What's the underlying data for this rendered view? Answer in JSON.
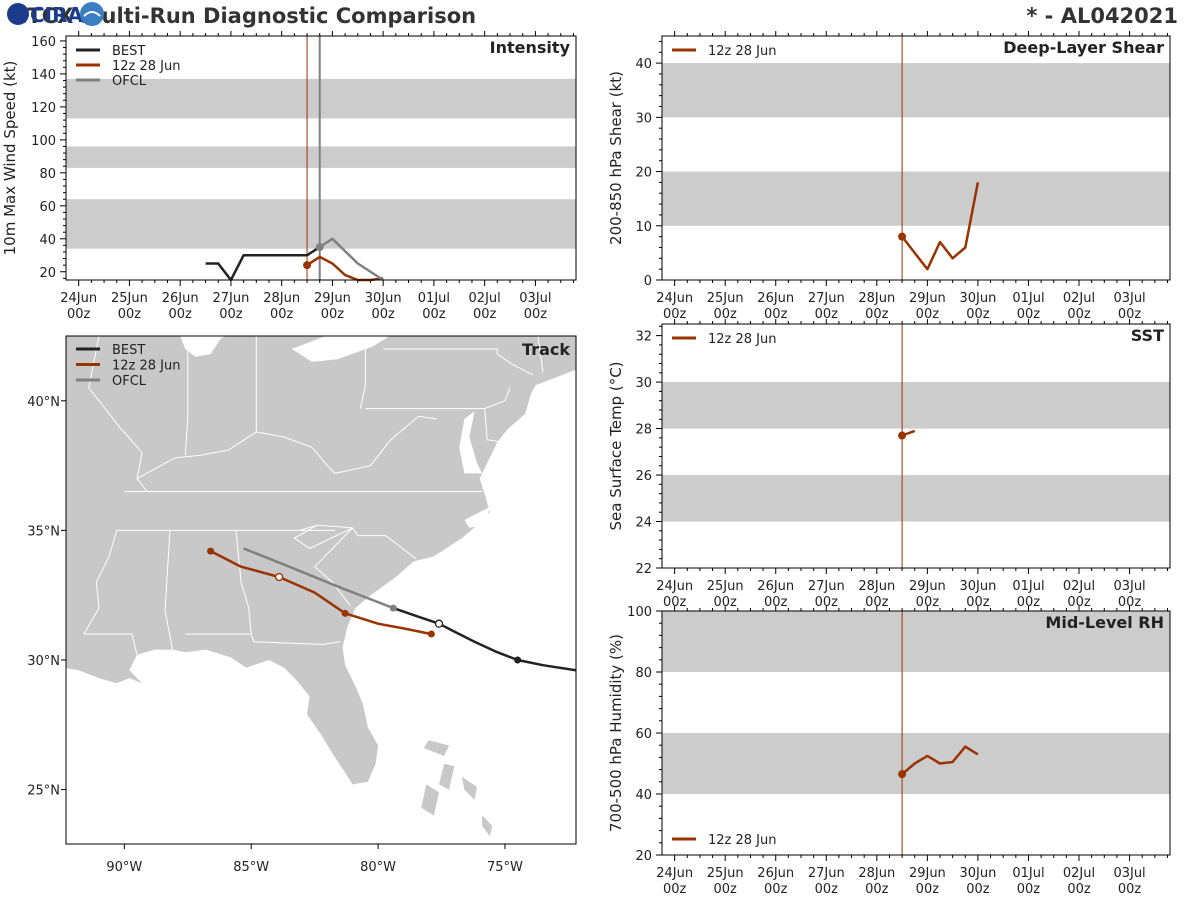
{
  "page": {
    "title_left": "CTCX Multi-Run Diagnostic Comparison",
    "title_right": "* - AL042021",
    "logo_text": "CIRA"
  },
  "colors": {
    "best": "#222222",
    "run": "#993300",
    "ofcl": "#808080",
    "band": "#cccccc",
    "land": "#c8c8c8",
    "ocean": "#ffffff",
    "border": "#ffffff"
  },
  "time_axis": {
    "ticks": [
      "24Jun 00z",
      "25Jun 00z",
      "26Jun 00z",
      "27Jun 00z",
      "28Jun 00z",
      "29Jun 00z",
      "30Jun 00z",
      "01Jul 00z",
      "02Jul 00z",
      "03Jul 00z"
    ],
    "tmin": -0.25,
    "tmax": 9.8,
    "run_time": 4.5,
    "ofcl_time": 4.75
  },
  "chart_data": [
    {
      "id": "intensity",
      "type": "line",
      "title": "Intensity",
      "ylabel": "10m Max Wind Speed (kt)",
      "ylim": [
        15,
        163
      ],
      "yticks": [
        20,
        40,
        60,
        80,
        100,
        120,
        140,
        160
      ],
      "bands": [
        [
          34,
          64
        ],
        [
          83,
          96
        ],
        [
          113,
          137
        ]
      ],
      "legend": [
        "BEST",
        "12z 28 Jun",
        "OFCL"
      ],
      "series": [
        {
          "name": "BEST",
          "color_key": "best",
          "points": [
            [
              2.5,
              25
            ],
            [
              2.75,
              25
            ],
            [
              3.0,
              15
            ],
            [
              3.25,
              30
            ],
            [
              3.5,
              30
            ],
            [
              4.0,
              30
            ],
            [
              4.5,
              30
            ],
            [
              4.75,
              35
            ]
          ]
        },
        {
          "name": "12z 28 Jun",
          "color_key": "run",
          "points": [
            [
              4.5,
              24
            ],
            [
              4.75,
              29
            ],
            [
              5.0,
              25
            ],
            [
              5.25,
              18
            ],
            [
              5.5,
              14
            ],
            [
              5.75,
              14
            ],
            [
              6.0,
              16
            ]
          ],
          "marker_first": true
        },
        {
          "name": "OFCL",
          "color_key": "ofcl",
          "points": [
            [
              4.75,
              35
            ],
            [
              5.0,
              40
            ],
            [
              5.5,
              25
            ],
            [
              6.0,
              15
            ]
          ],
          "marker_first": true
        }
      ]
    },
    {
      "id": "shear",
      "type": "line",
      "title": "Deep-Layer Shear",
      "ylabel": "200-850 hPa Shear (kt)",
      "ylim": [
        0,
        45
      ],
      "yticks": [
        0,
        10,
        20,
        30,
        40
      ],
      "bands": [
        [
          10,
          20
        ],
        [
          30,
          40
        ]
      ],
      "legend": [
        "12z 28 Jun"
      ],
      "series": [
        {
          "name": "12z 28 Jun",
          "color_key": "run",
          "points": [
            [
              4.5,
              8
            ],
            [
              4.75,
              5
            ],
            [
              5.0,
              2
            ],
            [
              5.25,
              7
            ],
            [
              5.5,
              4
            ],
            [
              5.75,
              6
            ],
            [
              6.0,
              18
            ]
          ],
          "marker_first": true
        }
      ]
    },
    {
      "id": "sst",
      "type": "line",
      "title": "SST",
      "ylabel": "Sea Surface Temp (°C)",
      "ylim": [
        22,
        32.5
      ],
      "yticks": [
        22,
        24,
        26,
        28,
        30,
        32
      ],
      "bands": [
        [
          24,
          26
        ],
        [
          28,
          30
        ]
      ],
      "legend": [
        "12z 28 Jun"
      ],
      "series": [
        {
          "name": "12z 28 Jun",
          "color_key": "run",
          "points": [
            [
              4.5,
              27.7
            ],
            [
              4.75,
              27.9
            ]
          ],
          "marker_first": true
        }
      ]
    },
    {
      "id": "rh",
      "type": "line",
      "title": "Mid-Level RH",
      "ylabel": "700-500 hPa Humidity (%)",
      "ylim": [
        20,
        100
      ],
      "yticks": [
        20,
        40,
        60,
        80,
        100
      ],
      "bands": [
        [
          40,
          60
        ],
        [
          80,
          100
        ]
      ],
      "legend": [
        "12z 28 Jun"
      ],
      "series": [
        {
          "name": "12z 28 Jun",
          "color_key": "run",
          "points": [
            [
              4.5,
              46.5
            ],
            [
              4.75,
              50
            ],
            [
              5.0,
              52.5
            ],
            [
              5.25,
              50
            ],
            [
              5.5,
              50.5
            ],
            [
              5.75,
              55.5
            ],
            [
              6.0,
              53
            ]
          ],
          "marker_first": true
        }
      ]
    },
    {
      "id": "track",
      "type": "scatter",
      "title": "Track",
      "lon_range": [
        -92.3,
        -72.2
      ],
      "lat_range": [
        22.9,
        42.5
      ],
      "lon_ticks": [
        -90,
        -85,
        -80,
        -75
      ],
      "lon_labels": [
        "90°W",
        "85°W",
        "80°W",
        "75°W"
      ],
      "lat_ticks": [
        25,
        30,
        35,
        40
      ],
      "lat_labels": [
        "25°N",
        "30°N",
        "35°N",
        "40°N"
      ],
      "legend": [
        "BEST",
        "12z 28 Jun",
        "OFCL"
      ],
      "series": [
        {
          "name": "BEST",
          "color_key": "best",
          "points": [
            [
              -72.2,
              29.6
            ],
            [
              -73.5,
              29.8
            ],
            [
              -74.5,
              30.0
            ],
            [
              -75.3,
              30.3
            ],
            [
              -76.2,
              30.7
            ],
            [
              -77.0,
              31.1
            ],
            [
              -77.6,
              31.4
            ],
            [
              -78.5,
              31.7
            ],
            [
              -79.4,
              32.0
            ]
          ],
          "dots": [
            [
              -74.5,
              30.0,
              "filled"
            ],
            [
              -77.6,
              31.4,
              "open"
            ],
            [
              -79.4,
              32.0,
              "gray"
            ]
          ]
        },
        {
          "name": "12z 28 Jun",
          "color_key": "run",
          "points": [
            [
              -77.9,
              31.0
            ],
            [
              -78.9,
              31.2
            ],
            [
              -80.0,
              31.4
            ],
            [
              -81.3,
              31.8
            ],
            [
              -82.5,
              32.6
            ],
            [
              -83.9,
              33.2
            ],
            [
              -85.4,
              33.6
            ],
            [
              -86.6,
              34.2
            ]
          ],
          "dots": [
            [
              -77.9,
              31.0,
              "filled"
            ],
            [
              -81.3,
              31.8,
              "filled"
            ],
            [
              -83.9,
              33.2,
              "open"
            ],
            [
              -86.6,
              34.2,
              "filled"
            ]
          ]
        },
        {
          "name": "OFCL",
          "color_key": "ofcl",
          "points": [
            [
              -79.4,
              32.0
            ],
            [
              -81.5,
              32.8
            ],
            [
              -83.5,
              33.6
            ],
            [
              -85.3,
              34.3
            ]
          ]
        }
      ]
    }
  ]
}
